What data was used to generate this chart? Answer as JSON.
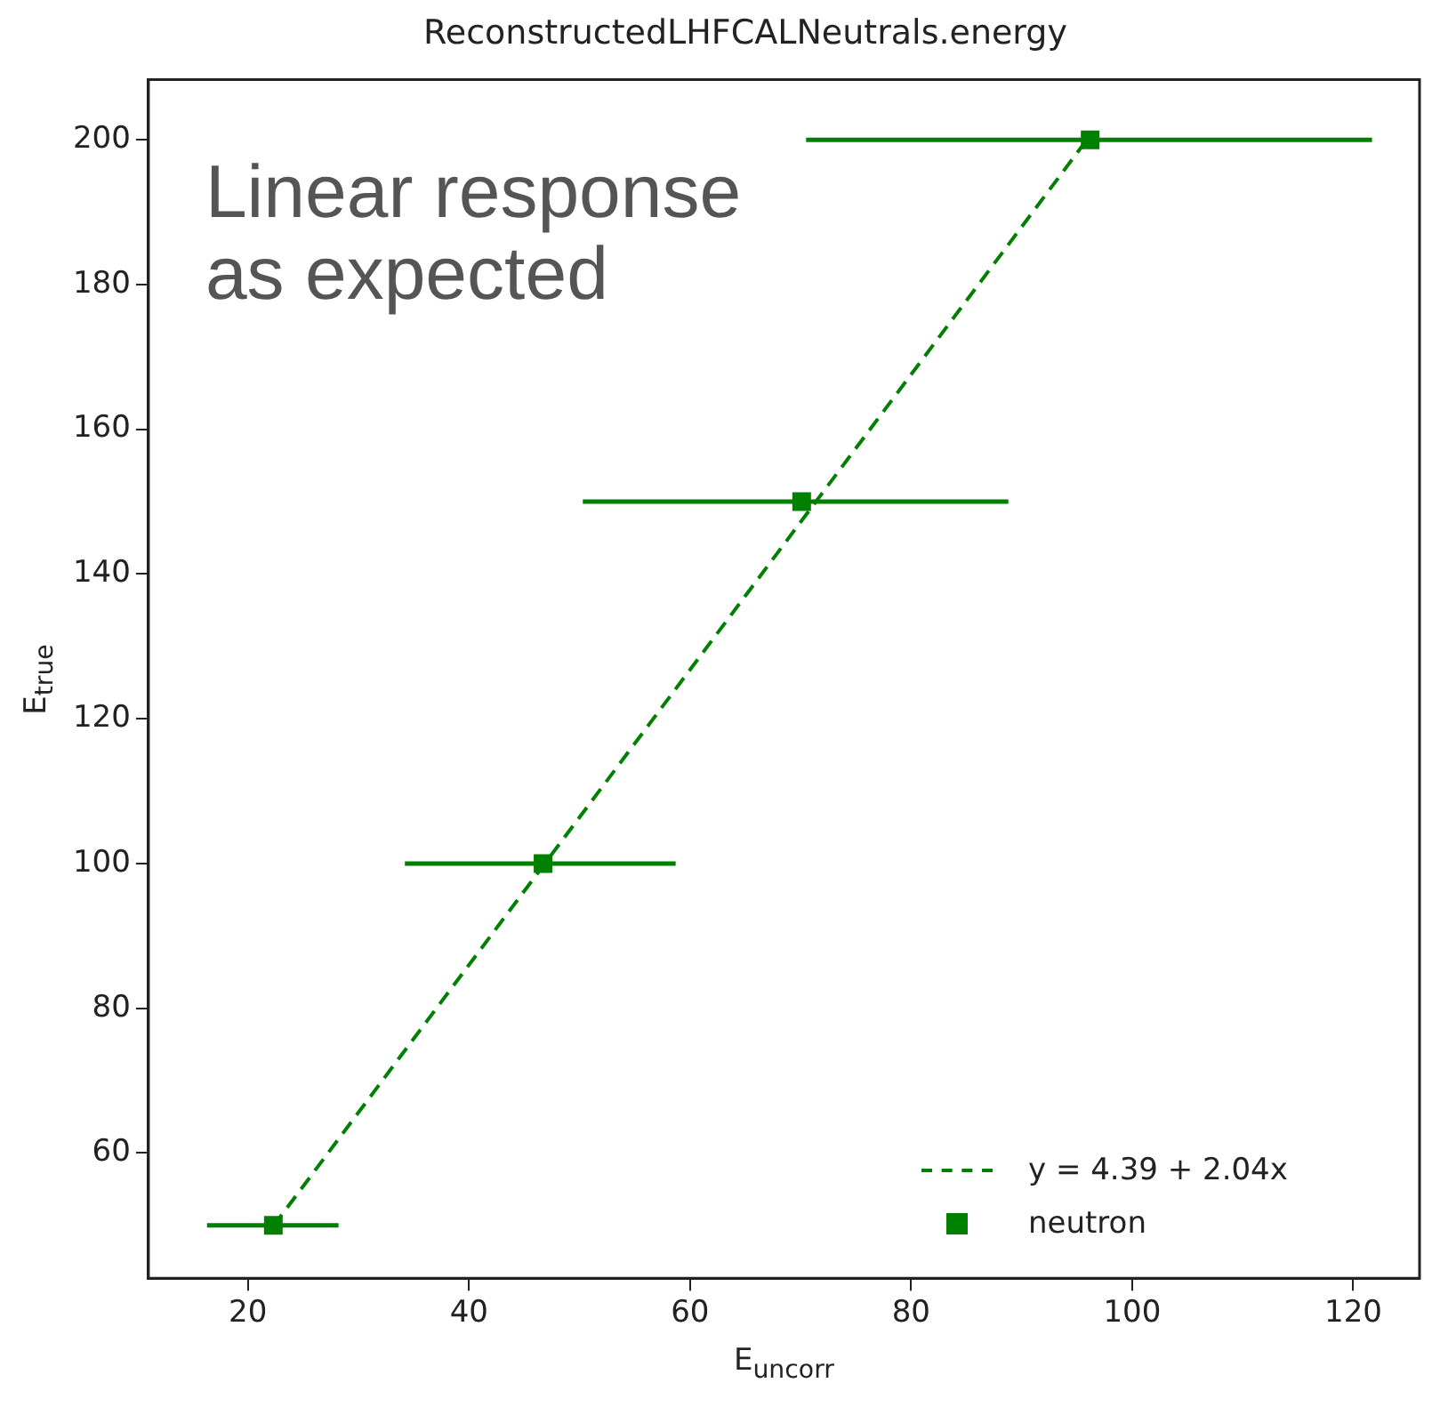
{
  "chart_data": {
    "type": "scatter",
    "title": "ReconstructedLHFCALNeutrals.energy",
    "xlabel": "E$_{uncorr}$",
    "ylabel": "E$_{true}$",
    "annotations": [
      "Linear response\nas expected"
    ],
    "xlim": [
      11,
      126
    ],
    "xticks": [
      20,
      40,
      60,
      80,
      100,
      120
    ],
    "ylim": [
      42.7,
      208.3
    ],
    "yticks": [
      60,
      80,
      100,
      120,
      140,
      160,
      180,
      200
    ],
    "grid": false,
    "legend": "bottom right",
    "series": [
      {
        "name": "y = 4.39 + 2.04x",
        "type": "line",
        "color": "#008000",
        "line_style": "dashed",
        "marker": "none",
        "x": [
          22.3,
          96.2
        ],
        "values": [
          49.9,
          200.6
        ]
      },
      {
        "name": "neutron",
        "color": "#008000",
        "marker": "square",
        "x": [
          22.3,
          46.7,
          70.1,
          96.2
        ],
        "values": [
          50,
          100,
          150,
          200
        ],
        "xerrors": [
          [
            16.3,
            28.2
          ],
          [
            34.2,
            58.7
          ],
          [
            50.3,
            88.8
          ],
          [
            70.5,
            121.7
          ]
        ]
      }
    ]
  }
}
